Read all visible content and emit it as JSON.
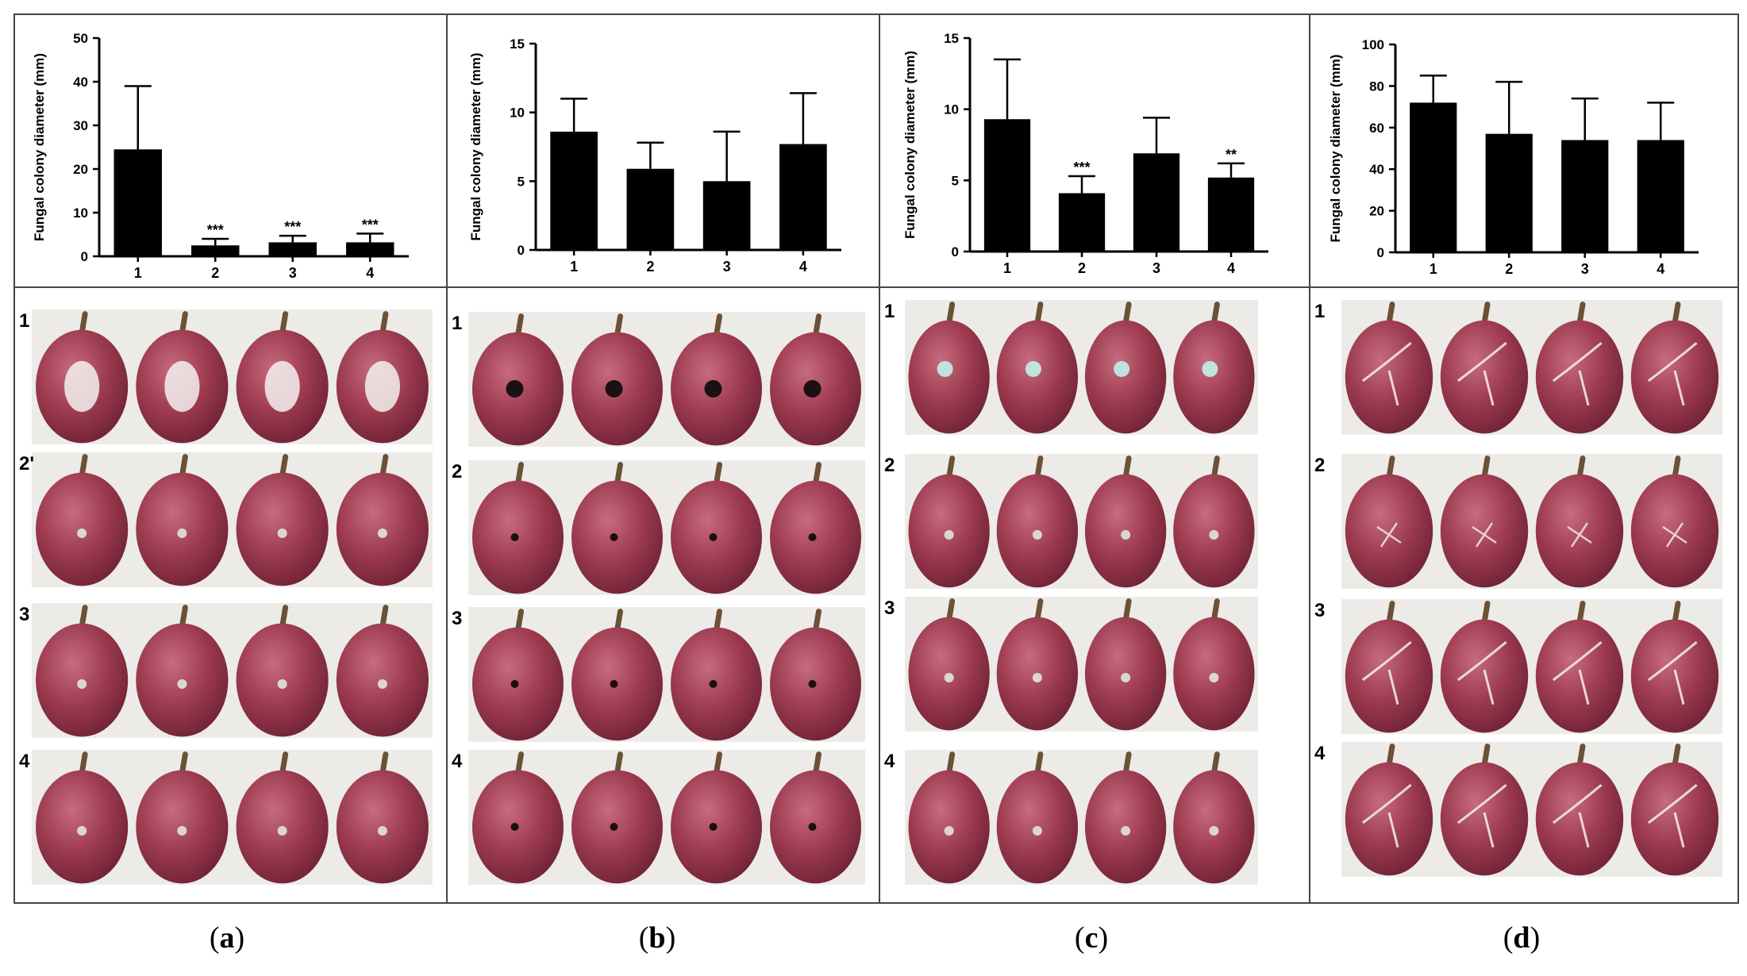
{
  "figure": {
    "captions": [
      {
        "open": "(",
        "letter": "a",
        "close": ")"
      },
      {
        "open": "(",
        "letter": "b",
        "close": ")"
      },
      {
        "open": "(",
        "letter": "c",
        "close": ")"
      },
      {
        "open": "(",
        "letter": "d",
        "close": ")"
      }
    ],
    "photo_rows": [
      "1",
      "2",
      "3",
      "4"
    ],
    "photo_row_labels_panel_a": [
      "1",
      "2'",
      "3",
      "4"
    ],
    "colors": {
      "bar": "#000000",
      "border": "#444444",
      "grape_base": "#9c3a4e",
      "grape_dark": "#6f2236",
      "grape_light": "#c86b7e",
      "stem": "#6b5236",
      "backdrop": "#ecebe8",
      "mycelium": "#f3f1ee"
    }
  },
  "chart_data": [
    {
      "type": "bar",
      "panel": "a",
      "ylabel": "Fungal colony diameter (mm)",
      "xlabel": "",
      "categories": [
        "1",
        "2",
        "3",
        "4"
      ],
      "values": [
        24.5,
        2.5,
        3.2,
        3.2
      ],
      "errors": [
        14.5,
        1.5,
        1.5,
        2.0
      ],
      "significance": [
        "",
        "***",
        "***",
        "***"
      ],
      "ylim": [
        0,
        50
      ],
      "yticks": [
        0,
        10,
        20,
        30,
        40,
        50
      ]
    },
    {
      "type": "bar",
      "panel": "b",
      "ylabel": "Fungal colony diameter (mm)",
      "xlabel": "",
      "categories": [
        "1",
        "2",
        "3",
        "4"
      ],
      "values": [
        8.6,
        5.9,
        5.0,
        7.7
      ],
      "errors": [
        2.4,
        1.9,
        3.6,
        3.7
      ],
      "significance": [
        "",
        "",
        "",
        ""
      ],
      "ylim": [
        0,
        15
      ],
      "yticks": [
        0,
        5,
        10,
        15
      ]
    },
    {
      "type": "bar",
      "panel": "c",
      "ylabel": "Fungal colony diameter (mm)",
      "xlabel": "",
      "categories": [
        "1",
        "2",
        "3",
        "4"
      ],
      "values": [
        9.3,
        4.1,
        6.9,
        5.2
      ],
      "errors": [
        4.2,
        1.2,
        2.5,
        1.0
      ],
      "significance": [
        "",
        "***",
        "",
        "**"
      ],
      "ylim": [
        0,
        15
      ],
      "yticks": [
        0,
        5,
        10,
        15
      ]
    },
    {
      "type": "bar",
      "panel": "d",
      "ylabel": "Fungal colony diameter (mm)",
      "xlabel": "",
      "categories": [
        "1",
        "2",
        "3",
        "4"
      ],
      "values": [
        72,
        57,
        54,
        54
      ],
      "errors": [
        13,
        25,
        20,
        18
      ],
      "significance": [
        "",
        "",
        "",
        ""
      ],
      "ylim": [
        0,
        100
      ],
      "yticks": [
        0,
        20,
        40,
        60,
        80,
        100
      ]
    }
  ]
}
